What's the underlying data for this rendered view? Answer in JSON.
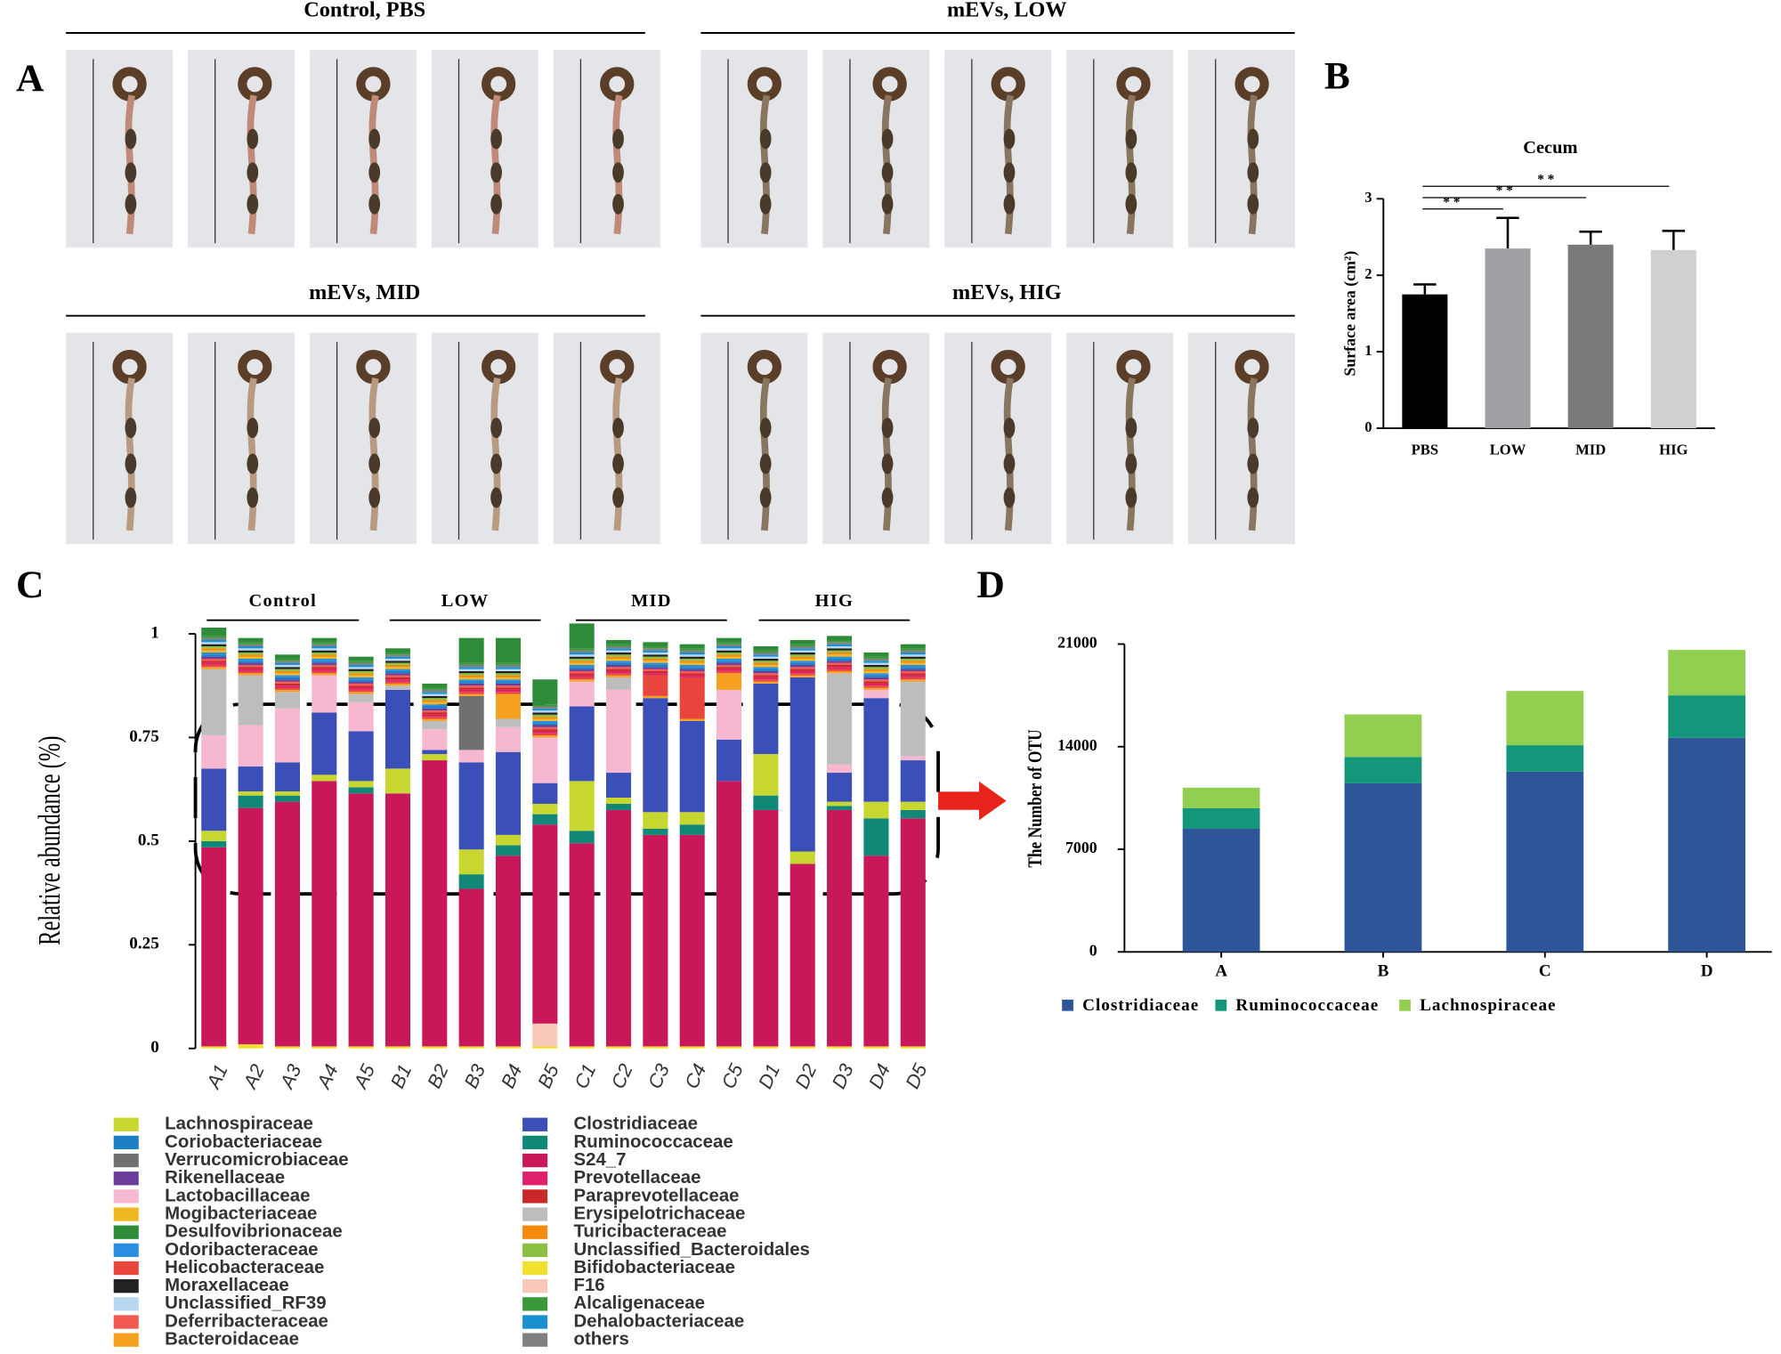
{
  "panel_labels": [
    "A",
    "B",
    "C",
    "D"
  ],
  "photo_groups": [
    "Control, PBS",
    "mEVs, LOW",
    "mEVs, MID",
    "mEVs, HIG"
  ],
  "chart_data": [
    {
      "type": "bar",
      "title": "Cecum",
      "y_label": "Surface area (cm²)",
      "categories": [
        "PBS",
        "LOW",
        "MID",
        "HIG"
      ],
      "values": [
        1.75,
        2.35,
        2.4,
        2.33
      ],
      "errors": [
        0.13,
        0.4,
        0.17,
        0.25
      ],
      "colors": [
        "#000000",
        "#a0a0a4",
        "#7a7a7a",
        "#d0d0d0"
      ],
      "ylim": [
        0,
        3
      ],
      "yticks": [
        0,
        1,
        2,
        3
      ],
      "significance_labels": [
        "* *",
        "* *",
        "* *"
      ]
    },
    {
      "type": "stacked_bar",
      "y_label": "Relative abundance (%)",
      "groups": [
        "Control",
        "LOW",
        "MID",
        "HIG"
      ],
      "categories": [
        "A1",
        "A2",
        "A3",
        "A4",
        "A5",
        "B1",
        "B2",
        "B3",
        "B4",
        "B5",
        "C1",
        "C2",
        "C3",
        "C4",
        "C5",
        "D1",
        "D2",
        "D3",
        "D4",
        "D5"
      ],
      "ylim": [
        0,
        1
      ],
      "yticks": [
        0,
        0.25,
        0.5,
        0.75,
        1
      ],
      "series": [
        {
          "name": "Lachnospiraceae",
          "color": "#c8d630",
          "values": [
            0.025,
            0.01,
            0.01,
            0.015,
            0.015,
            0.06,
            0.015,
            0.06,
            0.025,
            0.025,
            0.12,
            0.015,
            0.04,
            0.03,
            0,
            0.1,
            0.03,
            0.01,
            0.04,
            0.02
          ]
        },
        {
          "name": "Coriobacteriaceae",
          "color": "#1a7fc4",
          "values": [
            0.005,
            0.005,
            0.005,
            0.005,
            0.005,
            0.005,
            0.005,
            0.005,
            0.005,
            0.005,
            0.005,
            0.005,
            0.005,
            0.005,
            0.005,
            0.005,
            0.005,
            0.005,
            0.005,
            0.005
          ]
        },
        {
          "name": "Verrucomicrobiaceae",
          "color": "#707070",
          "values": [
            0,
            0,
            0,
            0,
            0,
            0,
            0,
            0.13,
            0,
            0,
            0,
            0,
            0,
            0,
            0,
            0,
            0,
            0,
            0,
            0
          ]
        },
        {
          "name": "Rikenellaceae",
          "color": "#6a3d9a",
          "values": [
            0.005,
            0.005,
            0.005,
            0.005,
            0.005,
            0.005,
            0.005,
            0.005,
            0.005,
            0.005,
            0.005,
            0.005,
            0.005,
            0.005,
            0.005,
            0.005,
            0.005,
            0.005,
            0.005,
            0.005
          ]
        },
        {
          "name": "Lactobacillaceae",
          "color": "#f5b8d0",
          "values": [
            0.08,
            0.1,
            0.13,
            0.09,
            0.07,
            0,
            0.05,
            0.03,
            0.06,
            0.11,
            0.06,
            0.2,
            0,
            0,
            0.12,
            0,
            0,
            0.02,
            0.02,
            0.01
          ]
        },
        {
          "name": "Mogibacteriaceae",
          "color": "#f0b820",
          "values": [
            0.005,
            0.005,
            0.005,
            0.005,
            0.005,
            0.005,
            0.005,
            0.005,
            0.005,
            0.005,
            0.005,
            0.005,
            0.005,
            0.005,
            0.005,
            0.005,
            0.005,
            0.005,
            0.005,
            0.005
          ]
        },
        {
          "name": "Desulfovibrionaceae",
          "color": "#2e8b3a",
          "values": [
            0.02,
            0.01,
            0.01,
            0.01,
            0.01,
            0.01,
            0.01,
            0.06,
            0.06,
            0.06,
            0.06,
            0.01,
            0.01,
            0.01,
            0.01,
            0.01,
            0.01,
            0.01,
            0.01,
            0.01
          ]
        },
        {
          "name": "Odoribacteraceae",
          "color": "#2a8ee0",
          "values": [
            0.005,
            0.005,
            0.005,
            0.005,
            0.005,
            0.005,
            0.005,
            0.005,
            0.005,
            0.005,
            0.005,
            0.005,
            0.005,
            0.005,
            0.005,
            0.005,
            0.005,
            0.005,
            0.005,
            0.005
          ]
        },
        {
          "name": "Helicobacteraceae",
          "color": "#e8453c",
          "values": [
            0.005,
            0.005,
            0.005,
            0.005,
            0.005,
            0.005,
            0.005,
            0.005,
            0.005,
            0.005,
            0.005,
            0.005,
            0.05,
            0.1,
            0.005,
            0.005,
            0.005,
            0.005,
            0.005,
            0.005
          ]
        },
        {
          "name": "Moraxellaceae",
          "color": "#222222",
          "values": [
            0.005,
            0.005,
            0.005,
            0.005,
            0.005,
            0.005,
            0.005,
            0.005,
            0.005,
            0.005,
            0.005,
            0.005,
            0.005,
            0.005,
            0.005,
            0.005,
            0.005,
            0.005,
            0.005,
            0.005
          ]
        },
        {
          "name": "Unclassified_RF39",
          "color": "#b8d8f0",
          "values": [
            0.005,
            0.005,
            0.005,
            0.005,
            0.005,
            0.005,
            0.005,
            0.005,
            0.005,
            0.005,
            0.005,
            0.005,
            0.005,
            0.005,
            0.005,
            0.005,
            0.005,
            0.005,
            0.005,
            0.005
          ]
        },
        {
          "name": "Deferribacteraceae",
          "color": "#f05a50",
          "values": [
            0.005,
            0.005,
            0.005,
            0.005,
            0.005,
            0.005,
            0.005,
            0.005,
            0.005,
            0.005,
            0.005,
            0.005,
            0.005,
            0.005,
            0.005,
            0.005,
            0.005,
            0.005,
            0.005,
            0.005
          ]
        },
        {
          "name": "Bacteroidaceae",
          "color": "#f5a020",
          "values": [
            0.005,
            0.005,
            0.005,
            0.005,
            0.005,
            0.005,
            0.005,
            0.005,
            0.06,
            0.005,
            0.005,
            0.005,
            0.005,
            0.005,
            0.04,
            0.005,
            0.005,
            0.005,
            0.005,
            0.005
          ]
        },
        {
          "name": "Clostridiaceae",
          "color": "#3a4fb8",
          "values": [
            0.15,
            0.06,
            0.07,
            0.15,
            0.12,
            0.19,
            0.01,
            0.21,
            0.2,
            0.05,
            0.18,
            0.06,
            0.275,
            0.22,
            0.1,
            0.17,
            0.42,
            0.07,
            0.25,
            0.1
          ]
        },
        {
          "name": "Ruminococcaceae",
          "color": "#118877",
          "values": [
            0.015,
            0.03,
            0.015,
            0,
            0.015,
            0,
            0,
            0.035,
            0.025,
            0.025,
            0.03,
            0.015,
            0.015,
            0.025,
            0,
            0.035,
            0,
            0.01,
            0.09,
            0.02
          ]
        },
        {
          "name": "S24_7",
          "color": "#c8185a",
          "values": [
            0.48,
            0.57,
            0.59,
            0.64,
            0.61,
            0.61,
            0.69,
            0.38,
            0.46,
            0.48,
            0.49,
            0.57,
            0.51,
            0.51,
            0.64,
            0.57,
            0.44,
            0.57,
            0.46,
            0.55
          ]
        },
        {
          "name": "Prevotellaceae",
          "color": "#e0206a",
          "values": [
            0.005,
            0.005,
            0.005,
            0.005,
            0.005,
            0.005,
            0.005,
            0.005,
            0.005,
            0.005,
            0.005,
            0.005,
            0.005,
            0.005,
            0.005,
            0.005,
            0.005,
            0.005,
            0.005,
            0.005
          ]
        },
        {
          "name": "Paraprevotellaceae",
          "color": "#c82828",
          "values": [
            0.005,
            0.005,
            0.005,
            0.005,
            0.005,
            0.005,
            0.005,
            0.005,
            0.005,
            0.005,
            0.005,
            0.005,
            0.005,
            0.005,
            0.005,
            0.005,
            0.005,
            0.005,
            0.005,
            0.005
          ]
        },
        {
          "name": "Erysipelotrichaceae",
          "color": "#bdbdbd",
          "values": [
            0.16,
            0.12,
            0.04,
            0,
            0.02,
            0.01,
            0.02,
            0,
            0.02,
            0,
            0,
            0.03,
            0,
            0,
            0,
            0,
            0,
            0.22,
            0,
            0.18
          ]
        },
        {
          "name": "Turicibacteraceae",
          "color": "#f58a10",
          "values": [
            0.005,
            0.005,
            0.005,
            0.005,
            0.005,
            0.005,
            0.005,
            0.005,
            0.005,
            0.005,
            0.005,
            0.005,
            0.005,
            0.005,
            0.005,
            0.005,
            0.005,
            0.005,
            0.005,
            0.005
          ]
        },
        {
          "name": "Unclassified_Bacteroidales",
          "color": "#8cc040",
          "values": [
            0.005,
            0.005,
            0.005,
            0.005,
            0.005,
            0.005,
            0.005,
            0.005,
            0.005,
            0.005,
            0.005,
            0.005,
            0.005,
            0.005,
            0.005,
            0.005,
            0.005,
            0.005,
            0.005,
            0.005
          ]
        },
        {
          "name": "Bifidobacteriaceae",
          "color": "#f0e030",
          "values": [
            0.005,
            0.01,
            0.005,
            0.005,
            0.005,
            0.005,
            0.005,
            0.005,
            0.005,
            0.005,
            0.005,
            0.005,
            0.005,
            0.005,
            0.005,
            0.005,
            0.005,
            0.005,
            0.005,
            0.005
          ]
        },
        {
          "name": "F16",
          "color": "#f8c8b8",
          "values": [
            0,
            0,
            0,
            0,
            0,
            0,
            0,
            0,
            0,
            0.055,
            0,
            0,
            0,
            0,
            0,
            0,
            0,
            0,
            0,
            0
          ]
        },
        {
          "name": "Alcaligenaceae",
          "color": "#3a9a3a",
          "values": [
            0.005,
            0.005,
            0.005,
            0.005,
            0.005,
            0.005,
            0.005,
            0.005,
            0.005,
            0.005,
            0.005,
            0.005,
            0.005,
            0.005,
            0.005,
            0.005,
            0.005,
            0.005,
            0.005,
            0.005
          ]
        },
        {
          "name": "Dehalobacteriaceae",
          "color": "#1a90d0",
          "values": [
            0.005,
            0.005,
            0.005,
            0.005,
            0.005,
            0.005,
            0.005,
            0.005,
            0.005,
            0.005,
            0.005,
            0.005,
            0.005,
            0.005,
            0.005,
            0.005,
            0.005,
            0.005,
            0.005,
            0.005
          ]
        },
        {
          "name": "others",
          "color": "#808080",
          "values": [
            0.005,
            0.005,
            0.005,
            0.005,
            0.005,
            0.005,
            0.005,
            0.005,
            0.005,
            0.005,
            0.005,
            0.005,
            0.005,
            0.005,
            0.005,
            0.005,
            0.005,
            0.005,
            0.005,
            0.005
          ]
        }
      ]
    },
    {
      "type": "stacked_bar",
      "y_label": "The Number of OTU",
      "categories": [
        "A",
        "B",
        "C",
        "D"
      ],
      "ylim": [
        0,
        21000
      ],
      "yticks": [
        0,
        7000,
        14000,
        21000
      ],
      "series": [
        {
          "name": "Clostridiaceae",
          "color": "#2e5597",
          "values": [
            8400,
            11500,
            12300,
            14600
          ]
        },
        {
          "name": "Ruminococcaceae",
          "color": "#14967a",
          "values": [
            1400,
            1800,
            1800,
            2900
          ]
        },
        {
          "name": "Lachnospiraceae",
          "color": "#92cf50",
          "values": [
            1400,
            2900,
            3700,
            3100
          ]
        }
      ]
    }
  ]
}
